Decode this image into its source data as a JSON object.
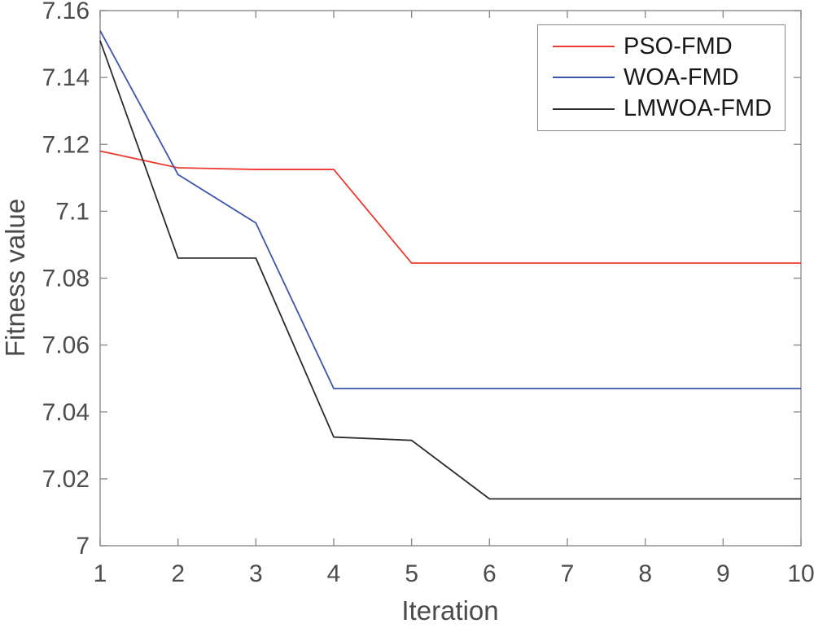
{
  "chart_data": {
    "type": "line",
    "title": "",
    "xlabel": "Iteration",
    "ylabel": "Fitness value",
    "xlim": [
      1,
      10
    ],
    "ylim": [
      7,
      7.16
    ],
    "grid": "off",
    "legend_position": "top-right",
    "x_ticks": {
      "values": [
        1,
        2,
        3,
        4,
        5,
        6,
        7,
        8,
        9,
        10
      ],
      "labels": [
        "1",
        "2",
        "3",
        "4",
        "5",
        "6",
        "7",
        "8",
        "9",
        "10"
      ]
    },
    "y_ticks": {
      "values": [
        7,
        7.02,
        7.04,
        7.06,
        7.08,
        7.1,
        7.12,
        7.14,
        7.16
      ],
      "labels": [
        "7",
        "7.02",
        "7.04",
        "7.06",
        "7.08",
        "7.1",
        "7.12",
        "7.14",
        "7.16"
      ]
    },
    "x": [
      1,
      2,
      3,
      4,
      5,
      6,
      7,
      8,
      9,
      10
    ],
    "series": [
      {
        "name": "PSO-FMD",
        "color": "#ec3a31",
        "values": [
          7.118,
          7.113,
          7.1125,
          7.1125,
          7.0845,
          7.0845,
          7.0845,
          7.0845,
          7.0845,
          7.0845
        ]
      },
      {
        "name": "WOA-FMD",
        "color": "#3b55ae",
        "values": [
          7.154,
          7.111,
          7.0965,
          7.047,
          7.047,
          7.047,
          7.047,
          7.047,
          7.047,
          7.047
        ]
      },
      {
        "name": "LMWOA-FMD",
        "color": "#2b2b2b",
        "values": [
          7.151,
          7.086,
          7.086,
          7.0325,
          7.0315,
          7.014,
          7.014,
          7.014,
          7.014,
          7.014
        ]
      }
    ]
  },
  "colors": {
    "axis_box": "#8c8c8c",
    "tick_label": "#4d4d4d",
    "axis_label": "#4a4a4a",
    "legend_border": "#8a8a8a",
    "background": "#ffffff"
  }
}
